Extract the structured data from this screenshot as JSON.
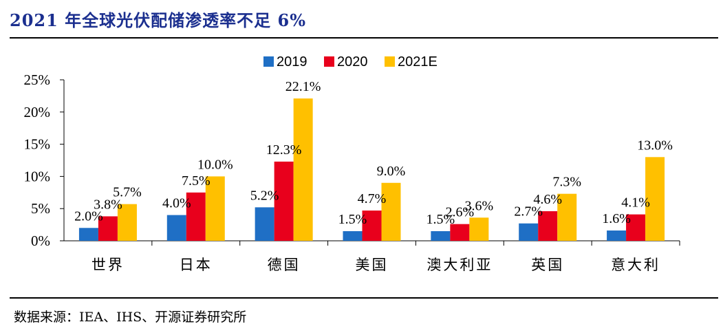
{
  "title": "2021 年全球光伏配储渗透率不足 6%",
  "source": "数据来源：IEA、IHS、开源证券研究所",
  "chart_data": {
    "type": "bar",
    "categories": [
      "世界",
      "日本",
      "德国",
      "美国",
      "澳大利亚",
      "英国",
      "意大利"
    ],
    "series": [
      {
        "name": "2019",
        "color": "#1f6fc5",
        "values": [
          2.0,
          4.0,
          5.2,
          1.5,
          1.5,
          2.7,
          1.6
        ],
        "labels": [
          "2.0%",
          "4.0%",
          "5.2%",
          "1.5%",
          "1.5%",
          "2.7%",
          "1.6%"
        ]
      },
      {
        "name": "2020",
        "color": "#e8001c",
        "values": [
          3.8,
          7.5,
          12.3,
          4.7,
          2.6,
          4.6,
          4.1
        ],
        "labels": [
          "3.8%",
          "7.5%",
          "12.3%",
          "4.7%",
          "2.6%",
          "4.6%",
          "4.1%"
        ]
      },
      {
        "name": "2021E",
        "color": "#ffc000",
        "values": [
          5.7,
          10.0,
          22.1,
          9.0,
          3.6,
          7.3,
          13.0
        ],
        "labels": [
          "5.7%",
          "10.0%",
          "22.1%",
          "9.0%",
          "3.6%",
          "7.3%",
          "13.0%"
        ]
      }
    ],
    "ylim": [
      0,
      25
    ],
    "yticks": [
      "0%",
      "5%",
      "10%",
      "15%",
      "20%",
      "25%"
    ],
    "legend_position": "top-center",
    "grid": false
  }
}
